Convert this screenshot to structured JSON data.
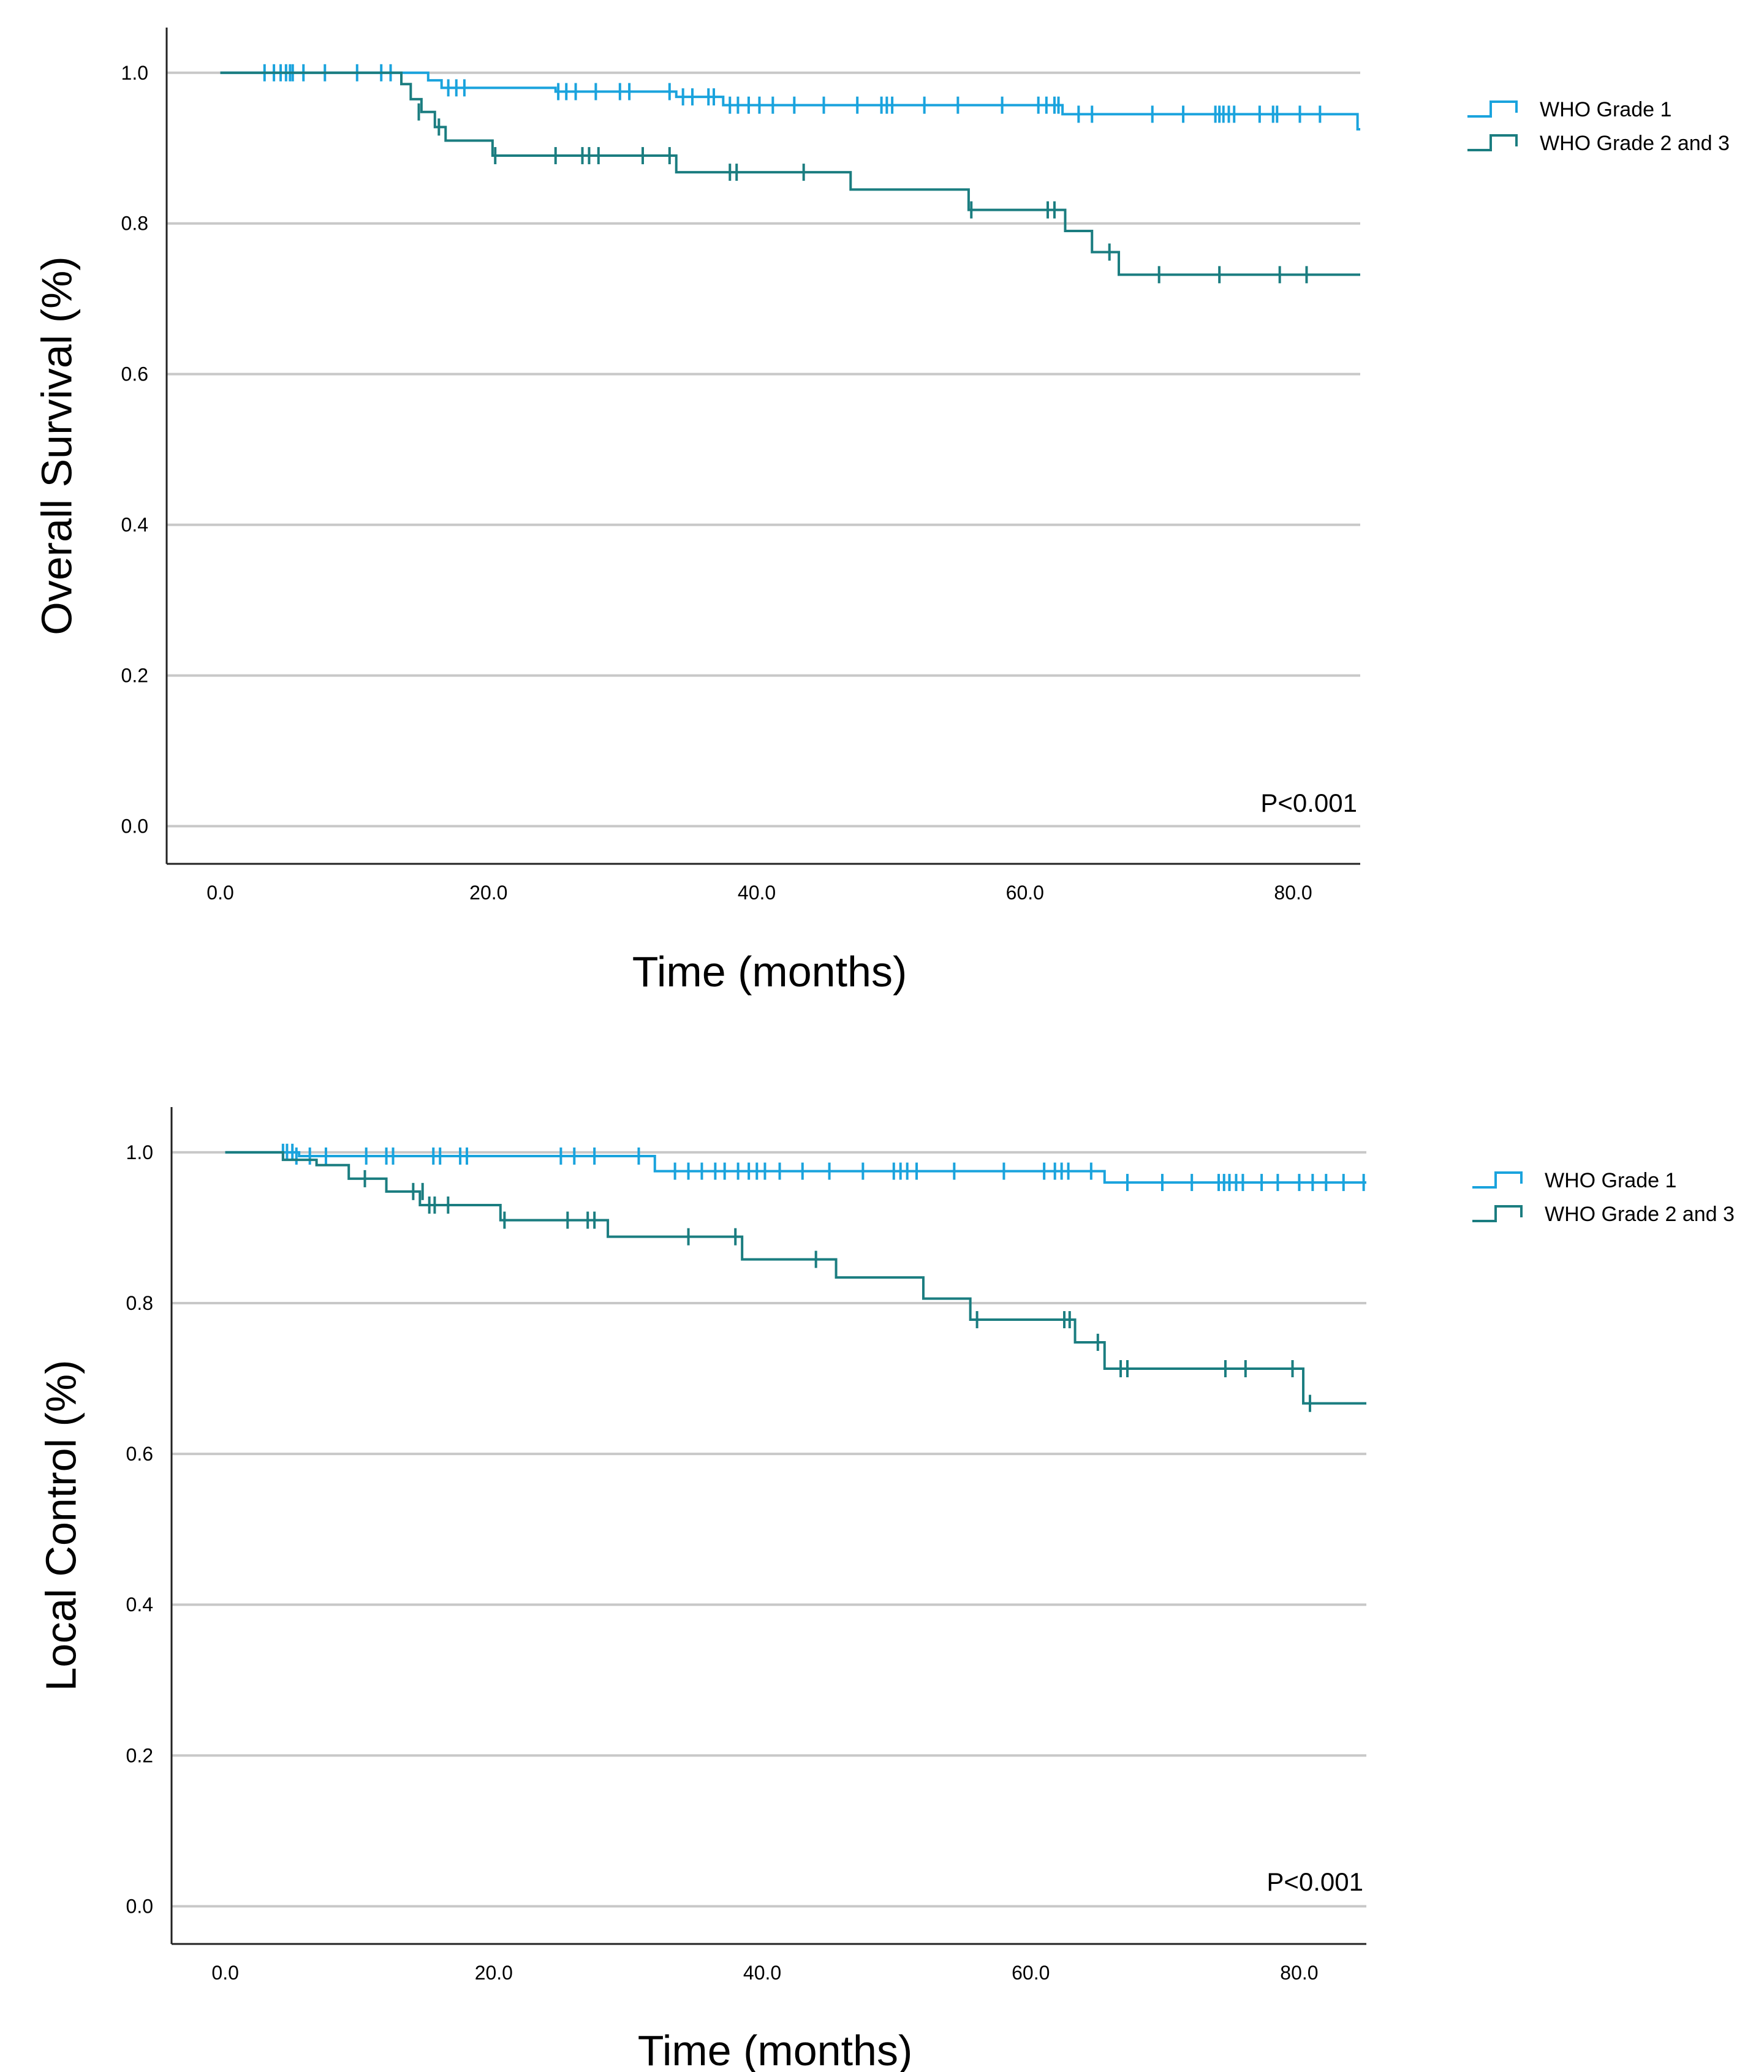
{
  "chart_data": [
    {
      "type": "line",
      "subtype": "kaplan-meier",
      "title": "",
      "xlabel": "Time (months)",
      "ylabel": "Overall Survival (%)",
      "xlim": [
        -4,
        85
      ],
      "ylim": [
        -0.05,
        1.06
      ],
      "xticks": [
        0,
        20,
        40,
        60,
        80
      ],
      "xtick_labels": [
        "0.0",
        "20.0",
        "40.0",
        "60.0",
        "80.0"
      ],
      "yticks": [
        0,
        0.2,
        0.4,
        0.6,
        0.8,
        1.0
      ],
      "ytick_labels": [
        "0.0",
        "0.2",
        "0.4",
        "0.6",
        "0.8",
        "1.0"
      ],
      "grid": "horizontal",
      "legend_position": "right-top",
      "annotation": "P<0.001",
      "series": [
        {
          "name": "WHO Grade 1",
          "color": "#1aa3dd",
          "steps": [
            [
              0,
              1.0
            ],
            [
              15.5,
              0.99
            ],
            [
              16.5,
              0.98
            ],
            [
              25.0,
              0.975
            ],
            [
              34.0,
              0.968
            ],
            [
              37.5,
              0.957
            ],
            [
              62.8,
              0.945
            ],
            [
              84.8,
              0.925
            ]
          ],
          "censored": [
            [
              3.3,
              1.0
            ],
            [
              4.0,
              1.0
            ],
            [
              4.5,
              1.0
            ],
            [
              4.9,
              1.0
            ],
            [
              5.2,
              1.0
            ],
            [
              5.4,
              1.0
            ],
            [
              6.2,
              1.0
            ],
            [
              7.8,
              1.0
            ],
            [
              10.2,
              1.0
            ],
            [
              12.0,
              1.0
            ],
            [
              12.7,
              1.0
            ],
            [
              17.0,
              0.98
            ],
            [
              17.6,
              0.98
            ],
            [
              18.2,
              0.98
            ],
            [
              25.2,
              0.975
            ],
            [
              25.8,
              0.975
            ],
            [
              26.5,
              0.975
            ],
            [
              28.0,
              0.975
            ],
            [
              29.8,
              0.975
            ],
            [
              30.5,
              0.975
            ],
            [
              33.5,
              0.975
            ],
            [
              34.5,
              0.968
            ],
            [
              35.2,
              0.968
            ],
            [
              36.4,
              0.968
            ],
            [
              36.8,
              0.968
            ],
            [
              38.0,
              0.957
            ],
            [
              38.6,
              0.957
            ],
            [
              39.4,
              0.957
            ],
            [
              40.2,
              0.957
            ],
            [
              41.2,
              0.957
            ],
            [
              42.8,
              0.957
            ],
            [
              45.0,
              0.957
            ],
            [
              47.5,
              0.957
            ],
            [
              49.3,
              0.957
            ],
            [
              49.7,
              0.957
            ],
            [
              50.1,
              0.957
            ],
            [
              52.5,
              0.957
            ],
            [
              55.0,
              0.957
            ],
            [
              58.3,
              0.957
            ],
            [
              61.0,
              0.957
            ],
            [
              61.6,
              0.957
            ],
            [
              62.2,
              0.957
            ],
            [
              62.5,
              0.957
            ],
            [
              64.0,
              0.945
            ],
            [
              65.0,
              0.945
            ],
            [
              69.5,
              0.945
            ],
            [
              71.8,
              0.945
            ],
            [
              74.2,
              0.945
            ],
            [
              74.5,
              0.945
            ],
            [
              74.8,
              0.945
            ],
            [
              75.2,
              0.945
            ],
            [
              75.6,
              0.945
            ],
            [
              77.5,
              0.945
            ],
            [
              78.5,
              0.945
            ],
            [
              78.8,
              0.945
            ],
            [
              80.5,
              0.945
            ],
            [
              82.0,
              0.945
            ]
          ]
        },
        {
          "name": "WHO Grade 2 and 3",
          "color": "#1b7d80",
          "steps": [
            [
              0,
              1.0
            ],
            [
              13.5,
              0.985
            ],
            [
              14.2,
              0.965
            ],
            [
              15.0,
              0.948
            ],
            [
              16.0,
              0.928
            ],
            [
              16.8,
              0.91
            ],
            [
              20.3,
              0.89
            ],
            [
              34.0,
              0.868
            ],
            [
              47.0,
              0.845
            ],
            [
              55.8,
              0.818
            ],
            [
              63.0,
              0.79
            ],
            [
              65.0,
              0.762
            ],
            [
              67.0,
              0.732
            ]
          ],
          "censored": [
            [
              14.8,
              0.948
            ],
            [
              16.3,
              0.928
            ],
            [
              20.5,
              0.89
            ],
            [
              25.0,
              0.89
            ],
            [
              27.0,
              0.89
            ],
            [
              27.5,
              0.89
            ],
            [
              28.2,
              0.89
            ],
            [
              31.5,
              0.89
            ],
            [
              33.5,
              0.89
            ],
            [
              38.0,
              0.868
            ],
            [
              38.5,
              0.868
            ],
            [
              43.5,
              0.868
            ],
            [
              56.0,
              0.818
            ],
            [
              61.7,
              0.818
            ],
            [
              62.2,
              0.818
            ],
            [
              66.3,
              0.762
            ],
            [
              70.0,
              0.732
            ],
            [
              74.5,
              0.732
            ],
            [
              79.0,
              0.732
            ],
            [
              81.0,
              0.732
            ]
          ]
        }
      ]
    },
    {
      "type": "line",
      "subtype": "kaplan-meier",
      "title": "",
      "xlabel": "Time (months)",
      "ylabel": "Local Control (%)",
      "xlim": [
        -4,
        85
      ],
      "ylim": [
        -0.05,
        1.06
      ],
      "xticks": [
        0,
        20,
        40,
        60,
        80
      ],
      "xtick_labels": [
        "0.0",
        "20.0",
        "40.0",
        "60.0",
        "80.0"
      ],
      "yticks": [
        0,
        0.2,
        0.4,
        0.6,
        0.8,
        1.0
      ],
      "ytick_labels": [
        "0.0",
        "0.2",
        "0.4",
        "0.6",
        "0.8",
        "1.0"
      ],
      "grid": "horizontal",
      "legend_position": "right-top",
      "annotation": "P<0.001",
      "series": [
        {
          "name": "WHO Grade 1",
          "color": "#1aa3dd",
          "steps": [
            [
              0,
              1.0
            ],
            [
              5.5,
              0.995
            ],
            [
              32.0,
              0.975
            ],
            [
              65.5,
              0.96
            ]
          ],
          "censored": [
            [
              4.3,
              1.0
            ],
            [
              4.6,
              1.0
            ],
            [
              5.0,
              1.0
            ],
            [
              5.3,
              0.995
            ],
            [
              6.3,
              0.995
            ],
            [
              7.5,
              0.995
            ],
            [
              10.5,
              0.995
            ],
            [
              12.0,
              0.995
            ],
            [
              12.5,
              0.995
            ],
            [
              15.5,
              0.995
            ],
            [
              16.0,
              0.995
            ],
            [
              17.5,
              0.995
            ],
            [
              18.0,
              0.995
            ],
            [
              25.0,
              0.995
            ],
            [
              26.0,
              0.995
            ],
            [
              27.5,
              0.995
            ],
            [
              30.8,
              0.995
            ],
            [
              33.5,
              0.975
            ],
            [
              34.5,
              0.975
            ],
            [
              35.5,
              0.975
            ],
            [
              36.5,
              0.975
            ],
            [
              37.2,
              0.975
            ],
            [
              38.2,
              0.975
            ],
            [
              39.0,
              0.975
            ],
            [
              39.6,
              0.975
            ],
            [
              40.2,
              0.975
            ],
            [
              41.3,
              0.975
            ],
            [
              43.0,
              0.975
            ],
            [
              45.0,
              0.975
            ],
            [
              47.5,
              0.975
            ],
            [
              49.8,
              0.975
            ],
            [
              50.3,
              0.975
            ],
            [
              50.8,
              0.975
            ],
            [
              51.5,
              0.975
            ],
            [
              54.3,
              0.975
            ],
            [
              58.0,
              0.975
            ],
            [
              61.0,
              0.975
            ],
            [
              61.8,
              0.975
            ],
            [
              62.3,
              0.975
            ],
            [
              62.8,
              0.975
            ],
            [
              64.5,
              0.975
            ],
            [
              67.2,
              0.96
            ],
            [
              69.8,
              0.96
            ],
            [
              72.0,
              0.96
            ],
            [
              74.0,
              0.96
            ],
            [
              74.4,
              0.96
            ],
            [
              74.8,
              0.96
            ],
            [
              75.3,
              0.96
            ],
            [
              75.8,
              0.96
            ],
            [
              77.2,
              0.96
            ],
            [
              78.4,
              0.96
            ],
            [
              80.0,
              0.96
            ],
            [
              81.0,
              0.96
            ],
            [
              82.0,
              0.96
            ],
            [
              83.3,
              0.96
            ],
            [
              84.8,
              0.96
            ]
          ]
        },
        {
          "name": "WHO Grade 2 and 3",
          "color": "#1b7d80",
          "steps": [
            [
              0,
              1.0
            ],
            [
              4.3,
              0.99
            ],
            [
              6.8,
              0.983
            ],
            [
              9.2,
              0.965
            ],
            [
              12.0,
              0.948
            ],
            [
              14.5,
              0.93
            ],
            [
              20.5,
              0.91
            ],
            [
              28.5,
              0.888
            ],
            [
              38.5,
              0.858
            ],
            [
              45.5,
              0.834
            ],
            [
              52.0,
              0.806
            ],
            [
              55.5,
              0.778
            ],
            [
              63.3,
              0.748
            ],
            [
              65.5,
              0.713
            ],
            [
              80.3,
              0.667
            ]
          ],
          "censored": [
            [
              10.4,
              0.965
            ],
            [
              14.0,
              0.948
            ],
            [
              14.7,
              0.948
            ],
            [
              15.2,
              0.93
            ],
            [
              15.6,
              0.93
            ],
            [
              16.6,
              0.93
            ],
            [
              20.8,
              0.91
            ],
            [
              25.5,
              0.91
            ],
            [
              27.0,
              0.91
            ],
            [
              27.5,
              0.91
            ],
            [
              34.5,
              0.888
            ],
            [
              38.0,
              0.888
            ],
            [
              44.0,
              0.858
            ],
            [
              56.0,
              0.778
            ],
            [
              62.5,
              0.778
            ],
            [
              62.9,
              0.778
            ],
            [
              65.0,
              0.748
            ],
            [
              66.7,
              0.713
            ],
            [
              67.2,
              0.713
            ],
            [
              74.5,
              0.713
            ],
            [
              76.0,
              0.713
            ],
            [
              79.5,
              0.713
            ],
            [
              80.8,
              0.667
            ]
          ]
        }
      ]
    }
  ]
}
